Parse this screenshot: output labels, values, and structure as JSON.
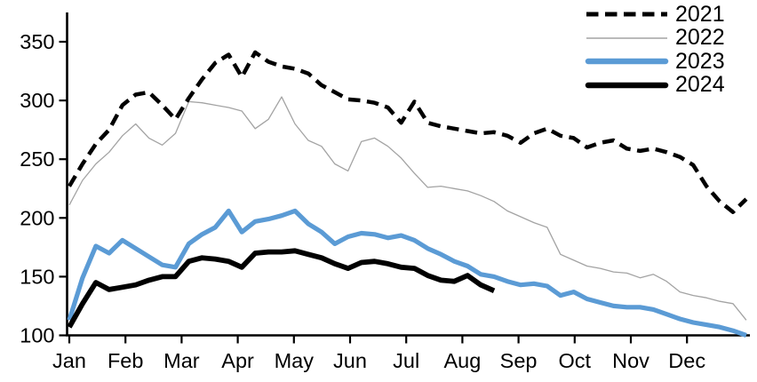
{
  "chart_data": {
    "type": "line",
    "title": "",
    "xlabel": "",
    "ylabel": "",
    "x_axis": {
      "tick_labels": [
        "Jan",
        "Feb",
        "Mar",
        "Apr",
        "May",
        "Jun",
        "Jul",
        "Aug",
        "Sep",
        "Oct",
        "Nov",
        "Dec"
      ],
      "granularity": "weekly"
    },
    "y_axis": {
      "tick_labels": [
        "100",
        "150",
        "200",
        "250",
        "300",
        "350"
      ],
      "tick_values": [
        100,
        150,
        200,
        250,
        300,
        350
      ],
      "range": [
        100,
        375
      ],
      "grid": false
    },
    "legend": {
      "position": "top-right"
    },
    "colors": {
      "axis": "#000000",
      "series_2021": "#000000",
      "series_2022": "#a3a3a3",
      "series_2023": "#5b9bd5",
      "series_2024": "#000000"
    },
    "series": [
      {
        "name": "2021",
        "style": "dashed",
        "color": "#000000",
        "stroke_width": 4.5,
        "values": [
          227,
          246,
          263,
          275,
          296,
          305,
          307,
          296,
          284,
          302,
          318,
          332,
          339,
          320,
          341,
          333,
          329,
          327,
          323,
          313,
          307,
          301,
          300,
          298,
          294,
          281,
          299,
          281,
          278,
          276,
          274,
          272,
          273,
          270,
          264,
          272,
          276,
          270,
          268,
          260,
          264,
          266,
          259,
          257,
          259,
          256,
          252,
          245,
          227,
          214,
          205,
          216
        ]
      },
      {
        "name": "2022",
        "style": "solid-thin",
        "color": "#a3a3a3",
        "stroke_width": 1.3,
        "values": [
          211,
          232,
          246,
          256,
          270,
          280,
          268,
          262,
          272,
          299,
          298,
          296,
          294,
          291,
          276,
          284,
          303,
          280,
          266,
          261,
          246,
          240,
          265,
          268,
          261,
          251,
          238,
          226,
          227,
          225,
          223,
          219,
          214,
          206,
          201,
          196,
          192,
          169,
          164,
          159,
          157,
          154,
          153,
          149,
          152,
          146,
          137,
          134,
          132,
          129,
          127,
          113
        ]
      },
      {
        "name": "2023",
        "style": "solid-thick",
        "color": "#5b9bd5",
        "stroke_width": 5.2,
        "values": [
          113,
          149,
          176,
          170,
          181,
          174,
          167,
          160,
          158,
          178,
          186,
          192,
          206,
          188,
          197,
          199,
          202,
          206,
          195,
          188,
          178,
          184,
          187,
          186,
          183,
          185,
          181,
          174,
          169,
          163,
          159,
          152,
          150,
          146,
          143,
          144,
          142,
          134,
          137,
          131,
          128,
          125,
          124,
          124,
          122,
          118,
          114,
          111,
          109,
          107,
          104,
          100
        ]
      },
      {
        "name": "2024",
        "style": "solid-thick",
        "color": "#000000",
        "stroke_width": 5.8,
        "values": [
          107,
          127,
          145,
          139,
          141,
          143,
          147,
          150,
          150,
          163,
          166,
          165,
          163,
          158,
          170,
          171,
          171,
          172,
          169,
          166,
          161,
          157,
          162,
          163,
          161,
          158,
          157,
          151,
          147,
          146,
          151,
          143,
          138
        ]
      }
    ]
  }
}
